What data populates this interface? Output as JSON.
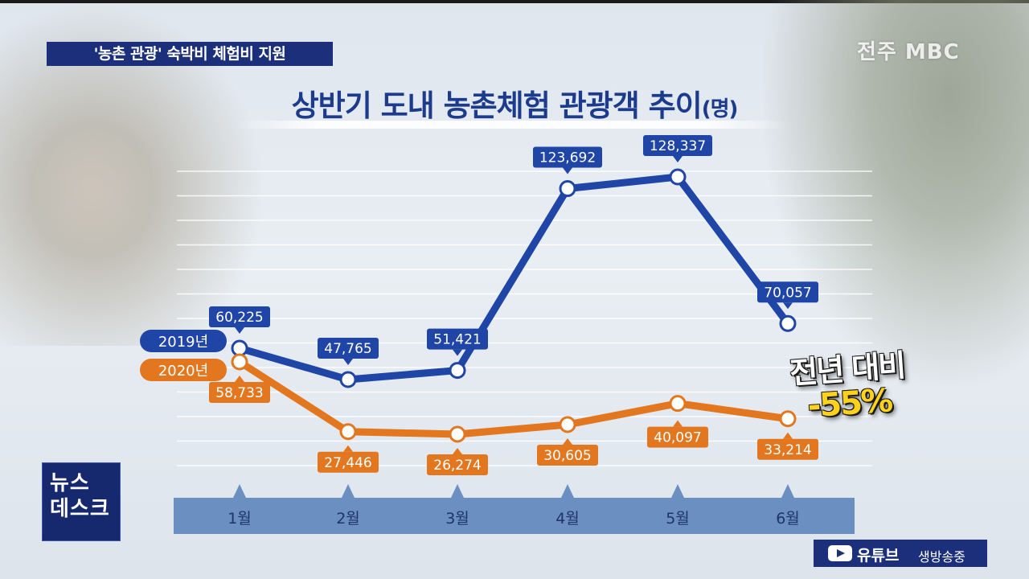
{
  "caption": "'농촌 관광' 숙박비 체험비 지원",
  "logo": "전주 MBC",
  "title": "상반기 도내 농촌체험 관광객 추이",
  "title_unit": "(명)",
  "news_badge": {
    "line1": "뉴스",
    "line2": "데스크"
  },
  "youtube": {
    "label": "유튜브",
    "live": "생방송중"
  },
  "yoy": {
    "label": "전년 대비",
    "value": "-55%"
  },
  "colors": {
    "series_2019": "#1f45a6",
    "series_2020": "#e2771f",
    "axis_band": "#6c8fc2"
  },
  "chart_data": {
    "type": "line",
    "x": [
      "1월",
      "2월",
      "3월",
      "4월",
      "5월",
      "6월"
    ],
    "series": [
      {
        "name": "2019년",
        "values": [
          60225,
          47765,
          51421,
          123692,
          128337,
          70057
        ],
        "labels": [
          "60,225",
          "47,765",
          "51,421",
          "123,692",
          "128,337",
          "70,057"
        ]
      },
      {
        "name": "2020년",
        "values": [
          58733,
          27446,
          26274,
          30605,
          40097,
          33214
        ],
        "labels": [
          "58,733",
          "27,446",
          "26,274",
          "30,605",
          "40,097",
          "33,214"
        ]
      }
    ],
    "grid": true,
    "legend": "left"
  }
}
